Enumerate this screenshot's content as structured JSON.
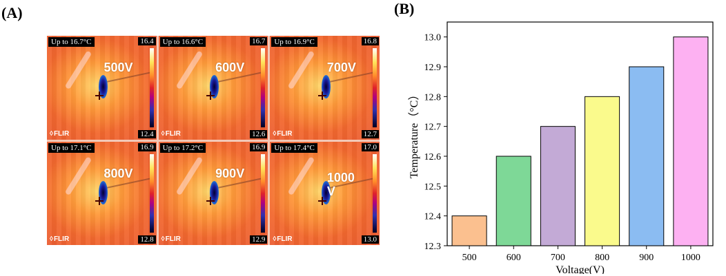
{
  "panel_a": {
    "label": "(A)",
    "tiles": [
      {
        "header": "Up to 16.7°C",
        "voltage": "500V",
        "scale_max": "16.4",
        "scale_min": "12.4",
        "logo": "FLIR"
      },
      {
        "header": "Up to 16.6°C",
        "voltage": "600V",
        "scale_max": "16.7",
        "scale_min": "12.6",
        "logo": "FLIR"
      },
      {
        "header": "Up to 16.9°C",
        "voltage": "700V",
        "scale_max": "16.8",
        "scale_min": "12.7",
        "logo": "FLIR"
      },
      {
        "header": "Up to 17.1°C",
        "voltage": "800V",
        "scale_max": "16.9",
        "scale_min": "12.8",
        "logo": "FLIR"
      },
      {
        "header": "Up to 17.2°C",
        "voltage": "900V",
        "scale_max": "16.9",
        "scale_min": "12.9",
        "logo": "FLIR"
      },
      {
        "header": "Up to 17.4°C",
        "voltage": "1000 V",
        "scale_max": "17.0",
        "scale_min": "13.0",
        "logo": "FLIR"
      }
    ]
  },
  "panel_b": {
    "label": "(B)"
  },
  "chart_data": {
    "type": "bar",
    "title": "",
    "xlabel": "Voltage(V)",
    "ylabel": "Temperature（°C）",
    "categories": [
      "500",
      "600",
      "700",
      "800",
      "900",
      "1000"
    ],
    "values": [
      12.4,
      12.6,
      12.7,
      12.8,
      12.9,
      13.0
    ],
    "colors": [
      "#fbc08f",
      "#7ed897",
      "#c3aad6",
      "#fafa8c",
      "#8bbcf2",
      "#fdb1f2"
    ],
    "ylim": [
      12.3,
      13.05
    ],
    "yticks": [
      "12.3",
      "12.4",
      "12.5",
      "12.6",
      "12.7",
      "12.8",
      "12.9",
      "13.0"
    ],
    "grid": false,
    "legend": "none"
  }
}
